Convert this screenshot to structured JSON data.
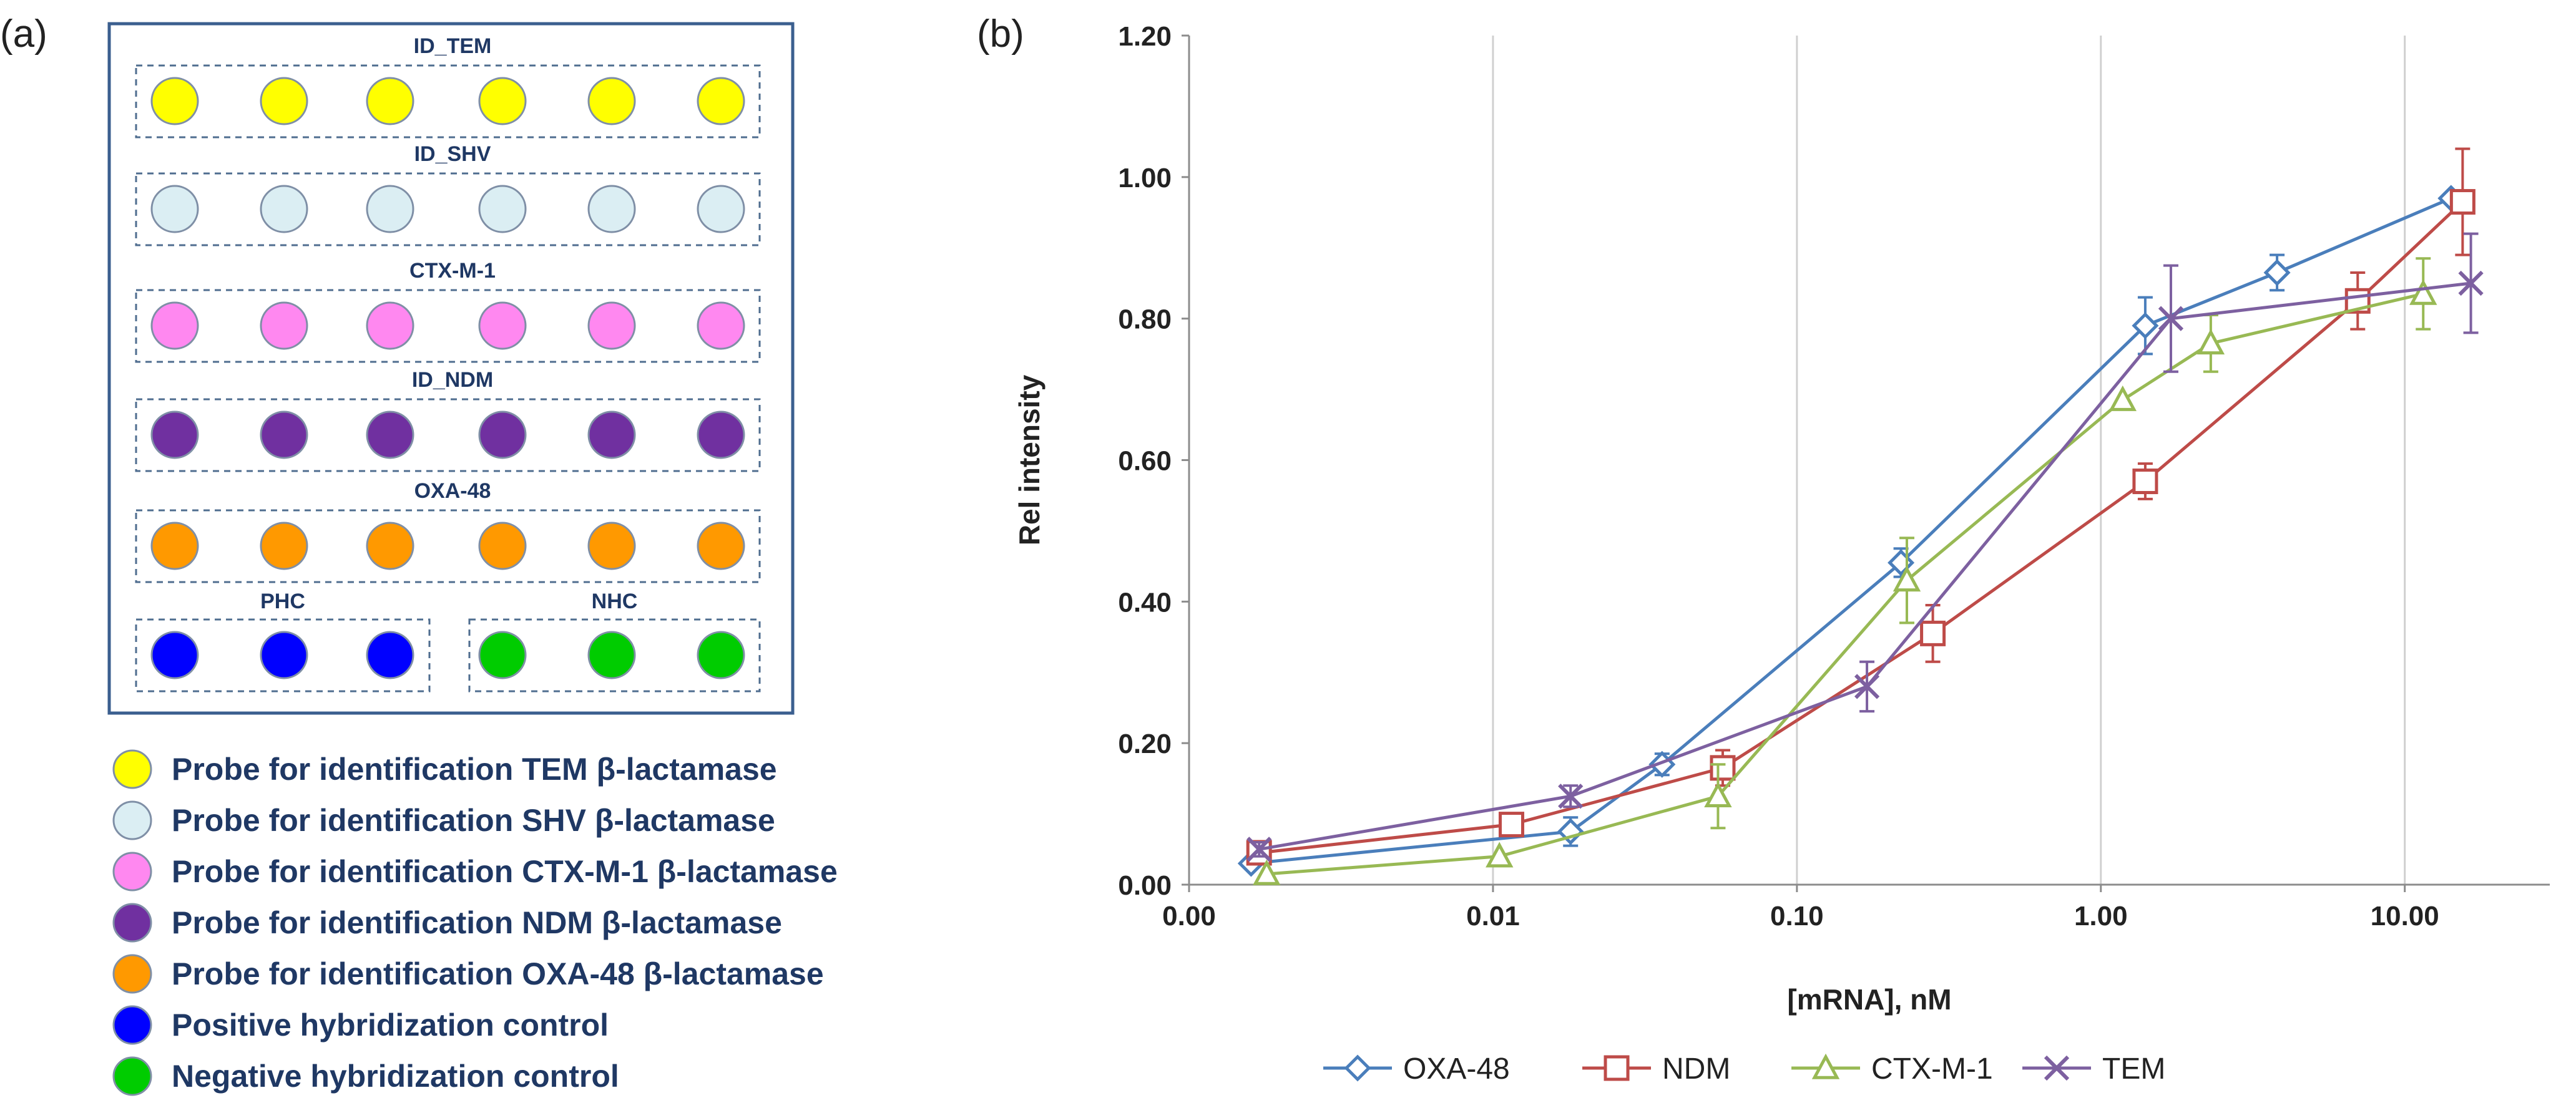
{
  "panel_a": {
    "label": "(a)",
    "groups": [
      {
        "title": "ID_TEM",
        "color": "#ffff00"
      },
      {
        "title": "ID_SHV",
        "color": "#dbeef3"
      },
      {
        "title": "CTX-M-1",
        "color": "#ff88f0"
      },
      {
        "title": "ID_NDM",
        "color": "#7030a0"
      },
      {
        "title": "OXA-48",
        "color": "#ff9900"
      }
    ],
    "controls": [
      {
        "title": "PHC",
        "color": "#0000ff"
      },
      {
        "title": "NHC",
        "color": "#00cc00"
      }
    ],
    "legend": [
      {
        "label": "Probe for identification TEM β-lactamase",
        "color": "#ffff00"
      },
      {
        "label": "Probe for identification SHV β-lactamase",
        "color": "#dbeef3"
      },
      {
        "label": "Probe for identification CTX-M-1 β-lactamase",
        "color": "#ff88f0"
      },
      {
        "label": "Probe for identification NDM β-lactamase",
        "color": "#7030a0"
      },
      {
        "label": "Probe for identification OXA-48 β-lactamase",
        "color": "#ff9900"
      },
      {
        "label": "Positive hybridization control",
        "color": "#0000ff"
      },
      {
        "label": "Negative hybridization control",
        "color": "#00cc00"
      }
    ]
  },
  "panel_b": {
    "label": "(b)"
  },
  "chart_data": {
    "type": "line",
    "x_scale": "log",
    "xlabel": "[mRNA], nM",
    "ylabel": "Rel intensity",
    "xlim": [
      0.001,
      30
    ],
    "ylim": [
      0,
      1.2
    ],
    "x_ticks": [
      0.001,
      0.01,
      0.1,
      1,
      10
    ],
    "x_tick_labels": [
      "0.00",
      "0.01",
      "0.10",
      "1.00",
      "10.00"
    ],
    "y_ticks": [
      0,
      0.2,
      0.4,
      0.6,
      0.8,
      1.0,
      1.2
    ],
    "y_tick_labels": [
      "0.00",
      "0.20",
      "0.40",
      "0.60",
      "0.80",
      "1.00",
      "1.20"
    ],
    "grid": "vertical",
    "legend_position": "bottom",
    "series": [
      {
        "name": "OXA-48",
        "color": "#4a7ebb",
        "marker": "diamond",
        "x": [
          0.0016,
          0.018,
          0.036,
          0.22,
          1.4,
          3.8,
          14.2
        ],
        "y": [
          0.03,
          0.075,
          0.17,
          0.455,
          0.79,
          0.865,
          0.97
        ],
        "err": [
          0.005,
          0.02,
          0.015,
          0.02,
          0.04,
          0.025,
          0.0
        ]
      },
      {
        "name": "NDM",
        "color": "#be4b48",
        "marker": "square",
        "x": [
          0.0017,
          0.0115,
          0.057,
          0.28,
          1.4,
          7.0,
          15.5
        ],
        "y": [
          0.045,
          0.085,
          0.165,
          0.355,
          0.57,
          0.825,
          0.965
        ],
        "err": [
          0.01,
          0.015,
          0.025,
          0.04,
          0.025,
          0.04,
          0.075
        ]
      },
      {
        "name": "CTX-M-1",
        "color": "#98b954",
        "marker": "triangle",
        "x": [
          0.0018,
          0.0105,
          0.055,
          0.23,
          1.18,
          2.3,
          11.5
        ],
        "y": [
          0.015,
          0.04,
          0.125,
          0.43,
          0.685,
          0.765,
          0.835
        ],
        "err": [
          0.0,
          0.0,
          0.045,
          0.06,
          0.0,
          0.04,
          0.05
        ]
      },
      {
        "name": "TEM",
        "color": "#7d60a0",
        "marker": "x",
        "x": [
          0.0017,
          0.018,
          0.17,
          1.7,
          16.5
        ],
        "y": [
          0.05,
          0.125,
          0.28,
          0.8,
          0.85
        ],
        "err": [
          0.01,
          0.015,
          0.035,
          0.075,
          0.07
        ]
      }
    ]
  }
}
